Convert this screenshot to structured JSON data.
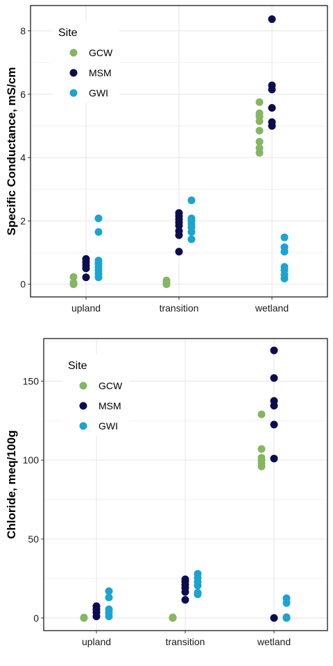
{
  "colors": {
    "GCW": "#84b760",
    "MSM": "#0b0d4e",
    "GWI": "#1ba3d1",
    "grid": "#ebebeb"
  },
  "chart_data": [
    {
      "type": "scatter",
      "ylabel": "Specific Conductance, mS/cm",
      "xlabel": "",
      "categories": [
        "upland",
        "transition",
        "wetland"
      ],
      "ylim": [
        -0.4,
        8.8
      ],
      "yticks": [
        0,
        2,
        4,
        6,
        8
      ],
      "legend": {
        "title": "Site",
        "position": "top-left",
        "entries": [
          "GCW",
          "MSM",
          "GWI"
        ]
      },
      "series": [
        {
          "name": "GCW",
          "points": [
            {
              "x": "upland",
              "y": 0.0
            },
            {
              "x": "upland",
              "y": 0.05
            },
            {
              "x": "upland",
              "y": 0.23
            },
            {
              "x": "transition",
              "y": 0.0
            },
            {
              "x": "transition",
              "y": 0.05
            },
            {
              "x": "transition",
              "y": 0.12
            },
            {
              "x": "wetland",
              "y": 4.15
            },
            {
              "x": "wetland",
              "y": 4.3
            },
            {
              "x": "wetland",
              "y": 4.5
            },
            {
              "x": "wetland",
              "y": 4.85
            },
            {
              "x": "wetland",
              "y": 5.15
            },
            {
              "x": "wetland",
              "y": 5.3
            },
            {
              "x": "wetland",
              "y": 5.4
            },
            {
              "x": "wetland",
              "y": 5.75
            }
          ]
        },
        {
          "name": "MSM",
          "points": [
            {
              "x": "upland",
              "y": 0.22
            },
            {
              "x": "upland",
              "y": 0.5
            },
            {
              "x": "upland",
              "y": 0.6
            },
            {
              "x": "upland",
              "y": 0.7
            },
            {
              "x": "upland",
              "y": 0.8
            },
            {
              "x": "transition",
              "y": 1.03
            },
            {
              "x": "transition",
              "y": 1.55
            },
            {
              "x": "transition",
              "y": 1.68
            },
            {
              "x": "transition",
              "y": 1.85
            },
            {
              "x": "transition",
              "y": 1.95
            },
            {
              "x": "transition",
              "y": 2.05
            },
            {
              "x": "transition",
              "y": 2.15
            },
            {
              "x": "transition",
              "y": 2.25
            },
            {
              "x": "wetland",
              "y": 5.0
            },
            {
              "x": "wetland",
              "y": 5.12
            },
            {
              "x": "wetland",
              "y": 5.57
            },
            {
              "x": "wetland",
              "y": 6.15
            },
            {
              "x": "wetland",
              "y": 6.28
            },
            {
              "x": "wetland",
              "y": 8.37
            }
          ]
        },
        {
          "name": "GWI",
          "points": [
            {
              "x": "upland",
              "y": 0.22
            },
            {
              "x": "upland",
              "y": 0.33
            },
            {
              "x": "upland",
              "y": 0.45
            },
            {
              "x": "upland",
              "y": 0.55
            },
            {
              "x": "upland",
              "y": 0.65
            },
            {
              "x": "upland",
              "y": 0.75
            },
            {
              "x": "upland",
              "y": 1.65
            },
            {
              "x": "upland",
              "y": 2.08
            },
            {
              "x": "transition",
              "y": 1.42
            },
            {
              "x": "transition",
              "y": 1.65
            },
            {
              "x": "transition",
              "y": 1.8
            },
            {
              "x": "transition",
              "y": 1.9
            },
            {
              "x": "transition",
              "y": 2.0
            },
            {
              "x": "transition",
              "y": 2.08
            },
            {
              "x": "transition",
              "y": 2.65
            },
            {
              "x": "wetland",
              "y": 0.18
            },
            {
              "x": "wetland",
              "y": 0.3
            },
            {
              "x": "wetland",
              "y": 0.45
            },
            {
              "x": "wetland",
              "y": 0.55
            },
            {
              "x": "wetland",
              "y": 1.03
            },
            {
              "x": "wetland",
              "y": 1.17
            },
            {
              "x": "wetland",
              "y": 1.48
            }
          ]
        }
      ]
    },
    {
      "type": "scatter",
      "ylabel": "Chloride, meq/100g",
      "xlabel": "",
      "categories": [
        "upland",
        "transition",
        "wetland"
      ],
      "ylim": [
        -8,
        177
      ],
      "yticks": [
        0,
        50,
        100,
        150
      ],
      "legend": {
        "title": "Site",
        "position": "top-left",
        "entries": [
          "GCW",
          "MSM",
          "GWI"
        ]
      },
      "series": [
        {
          "name": "GCW",
          "points": [
            {
              "x": "upland",
              "y": 0.0
            },
            {
              "x": "upland",
              "y": 0.3
            },
            {
              "x": "transition",
              "y": 0.0
            },
            {
              "x": "transition",
              "y": 0.4
            },
            {
              "x": "wetland",
              "y": 96
            },
            {
              "x": "wetland",
              "y": 98
            },
            {
              "x": "wetland",
              "y": 100
            },
            {
              "x": "wetland",
              "y": 101.5
            },
            {
              "x": "wetland",
              "y": 107
            },
            {
              "x": "wetland",
              "y": 129
            }
          ]
        },
        {
          "name": "MSM",
          "points": [
            {
              "x": "upland",
              "y": 1
            },
            {
              "x": "upland",
              "y": 3.5
            },
            {
              "x": "upland",
              "y": 5.5
            },
            {
              "x": "upland",
              "y": 7.5
            },
            {
              "x": "transition",
              "y": 11.5
            },
            {
              "x": "transition",
              "y": 16.5
            },
            {
              "x": "transition",
              "y": 19
            },
            {
              "x": "transition",
              "y": 21
            },
            {
              "x": "transition",
              "y": 23
            },
            {
              "x": "transition",
              "y": 24.5
            },
            {
              "x": "wetland",
              "y": 0
            },
            {
              "x": "wetland",
              "y": 101
            },
            {
              "x": "wetland",
              "y": 122.5
            },
            {
              "x": "wetland",
              "y": 134.5
            },
            {
              "x": "wetland",
              "y": 137.5
            },
            {
              "x": "wetland",
              "y": 152
            },
            {
              "x": "wetland",
              "y": 169.5
            }
          ]
        },
        {
          "name": "GWI",
          "points": [
            {
              "x": "upland",
              "y": 1
            },
            {
              "x": "upland",
              "y": 3.5
            },
            {
              "x": "upland",
              "y": 5.5
            },
            {
              "x": "upland",
              "y": 13
            },
            {
              "x": "upland",
              "y": 17
            },
            {
              "x": "transition",
              "y": 15
            },
            {
              "x": "transition",
              "y": 16
            },
            {
              "x": "transition",
              "y": 20.5
            },
            {
              "x": "transition",
              "y": 23
            },
            {
              "x": "transition",
              "y": 25.5
            },
            {
              "x": "transition",
              "y": 28
            },
            {
              "x": "wetland",
              "y": 0
            },
            {
              "x": "wetland",
              "y": 0.5
            },
            {
              "x": "wetland",
              "y": 9.5
            },
            {
              "x": "wetland",
              "y": 12.5
            }
          ]
        }
      ]
    }
  ]
}
